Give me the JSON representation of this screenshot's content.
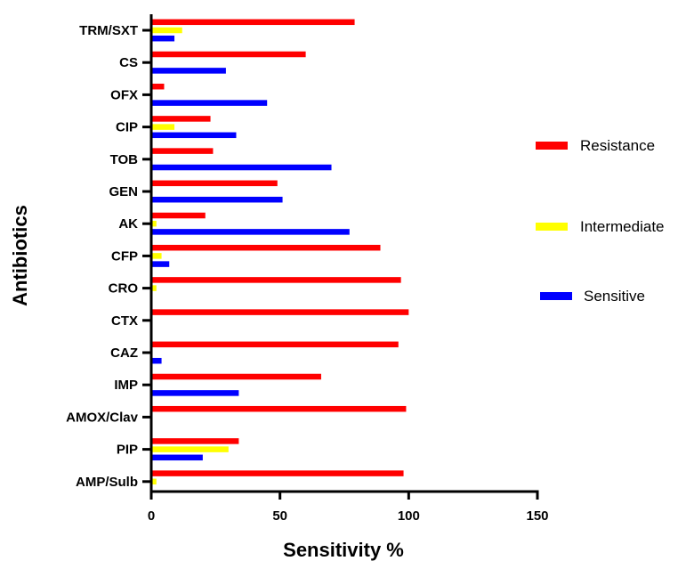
{
  "chart_data": {
    "type": "bar",
    "orientation": "horizontal",
    "xlabel": "Sensitivity %",
    "ylabel": "Antibiotics",
    "xlim": [
      0,
      150
    ],
    "xticks": [
      0,
      50,
      100,
      150
    ],
    "grid": false,
    "legend_position": "right",
    "categories": [
      "TRM/SXT",
      "CS",
      "OFX",
      "CIP",
      "TOB",
      "GEN",
      "AK",
      "CFP",
      "CRO",
      "CTX",
      "CAZ",
      "IMP",
      "AMOX/Clav",
      "PIP",
      "AMP/Sulb"
    ],
    "series": [
      {
        "name": "Resistance",
        "color": "#ff0000",
        "values": [
          79,
          60,
          5,
          23,
          24,
          49,
          21,
          89,
          97,
          100,
          96,
          66,
          99,
          34,
          98
        ]
      },
      {
        "name": "Intermediate",
        "color": "#ffff00",
        "values": [
          12,
          0,
          0,
          9,
          0,
          0,
          2,
          4,
          2,
          0,
          0,
          0,
          0,
          30,
          2
        ]
      },
      {
        "name": "Sensitive",
        "color": "#0000ff",
        "values": [
          9,
          29,
          45,
          33,
          70,
          51,
          77,
          7,
          0,
          0,
          4,
          34,
          0,
          20,
          0
        ]
      }
    ]
  }
}
